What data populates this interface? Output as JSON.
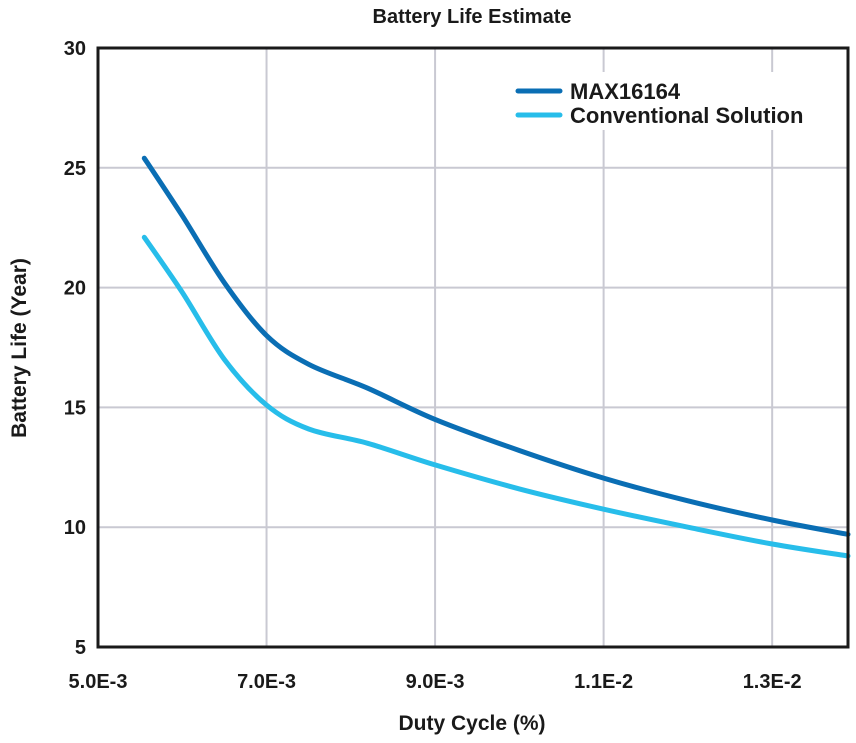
{
  "chart_data": {
    "type": "line",
    "title": "Battery Life Estimate",
    "xlabel": "Duty Cycle (%)",
    "ylabel": "Battery Life (Year)",
    "xlim": [
      0.005,
      0.0139
    ],
    "ylim": [
      5,
      30
    ],
    "x_ticks": [
      {
        "value": 0.005,
        "label": "5.0E-3"
      },
      {
        "value": 0.007,
        "label": "7.0E-3"
      },
      {
        "value": 0.009,
        "label": "9.0E-3"
      },
      {
        "value": 0.011,
        "label": "1.1E-2"
      },
      {
        "value": 0.013,
        "label": "1.3E-2"
      }
    ],
    "y_ticks": [
      {
        "value": 5,
        "label": "5"
      },
      {
        "value": 10,
        "label": "10"
      },
      {
        "value": 15,
        "label": "15"
      },
      {
        "value": 20,
        "label": "20"
      },
      {
        "value": 25,
        "label": "25"
      },
      {
        "value": 30,
        "label": "30"
      }
    ],
    "grid": true,
    "legend_position": "top-right",
    "series": [
      {
        "name": "MAX16164",
        "color": "#0a6eb4",
        "x": [
          0.00555,
          0.006,
          0.0065,
          0.007,
          0.0075,
          0.0082,
          0.009,
          0.01,
          0.011,
          0.012,
          0.013,
          0.0139
        ],
        "y": [
          25.4,
          23.0,
          20.2,
          18.0,
          16.8,
          15.8,
          14.5,
          13.2,
          12.05,
          11.1,
          10.3,
          9.7
        ]
      },
      {
        "name": "Conventional Solution",
        "color": "#27bdea",
        "x": [
          0.00555,
          0.006,
          0.0065,
          0.007,
          0.0075,
          0.0082,
          0.009,
          0.01,
          0.011,
          0.012,
          0.013,
          0.0139
        ],
        "y": [
          22.1,
          19.8,
          17.0,
          15.1,
          14.1,
          13.5,
          12.6,
          11.6,
          10.75,
          10.0,
          9.3,
          8.8
        ]
      }
    ]
  }
}
